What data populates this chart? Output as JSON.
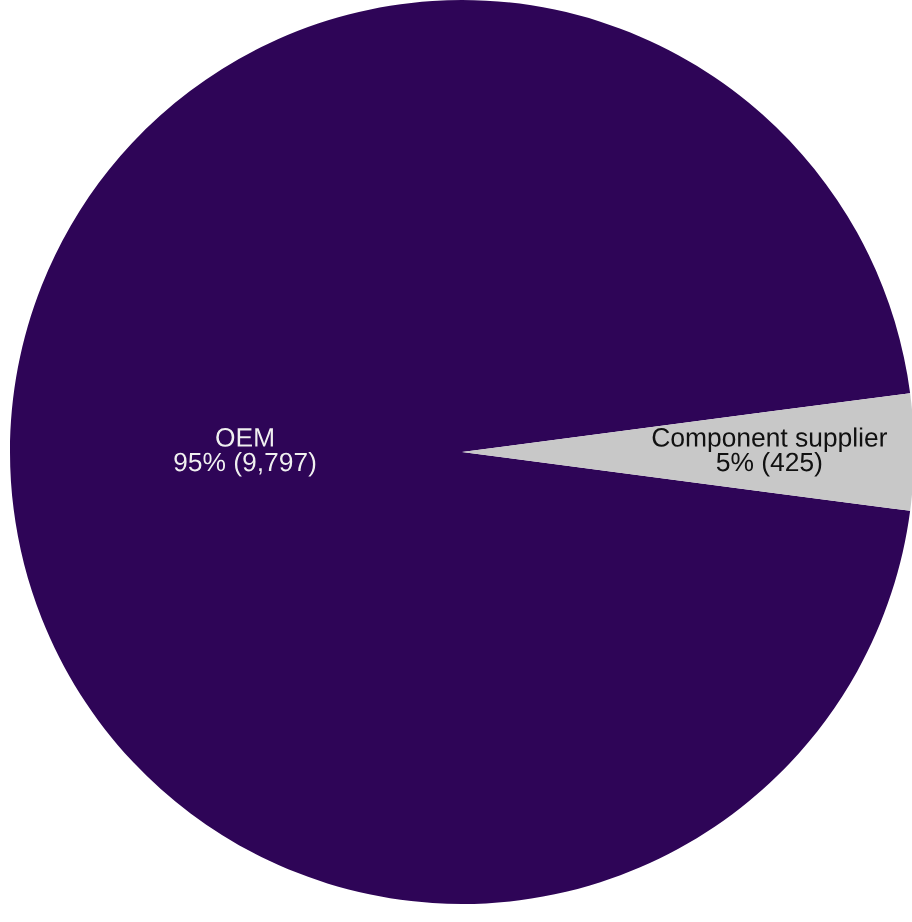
{
  "chart_data": {
    "type": "pie",
    "categories": [
      "OEM",
      "Component supplier"
    ],
    "values": [
      9797,
      425
    ],
    "colors": [
      "#2e0557",
      "#c8c8c8"
    ],
    "value_labels": [
      "95% (9,797)",
      "5% (425)"
    ],
    "legend": false
  }
}
